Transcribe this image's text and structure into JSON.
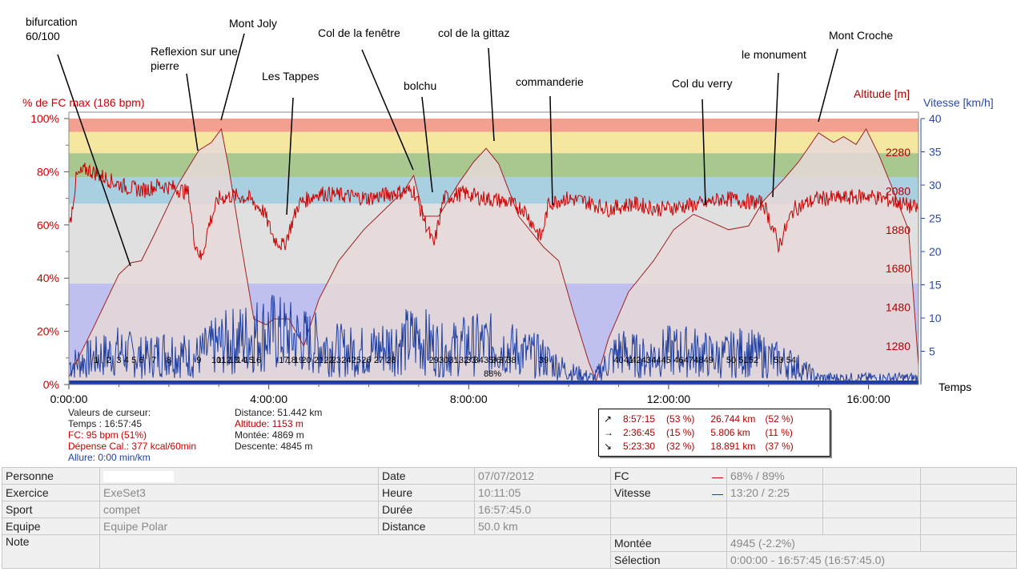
{
  "header": {
    "left_axis_title": "% de FC max (186 bpm)",
    "altitude_axis_title": "Altitude [m]",
    "speed_axis_title": "Vitesse [km/h]",
    "time_axis_title": "Temps"
  },
  "colors": {
    "hr_line": "#cc0000",
    "speed_line": "#1f3fa0",
    "altitude_fill": "#e6d8d8",
    "zone_100": "#f4a090",
    "zone_90": "#f5e6a0",
    "zone_80": "#a8c890",
    "zone_70": "#a8d0e0",
    "zone_60": "#e0e0e0",
    "zone_40": "#c0c0f0"
  },
  "chart_data": {
    "type": "line",
    "x_unit": "h:mm:ss",
    "x_ticks": [
      "0:00:00",
      "4:00:00",
      "8:00:00",
      "12:00:00",
      "16:00:00"
    ],
    "x_range_hours": [
      0,
      17.0
    ],
    "hr_ticks": [
      "0%",
      "20%",
      "40%",
      "60%",
      "80%",
      "100%"
    ],
    "altitude_ticks": [
      "1280",
      "1480",
      "1680",
      "1880",
      "2080",
      "2280"
    ],
    "speed_ticks": [
      "5",
      "10",
      "15",
      "20",
      "25",
      "30",
      "35",
      "40"
    ],
    "hr_zones_pct": [
      {
        "from": 38,
        "to": 68,
        "color_key": "zone_60"
      },
      {
        "from": 68,
        "to": 78,
        "color_key": "zone_70"
      },
      {
        "from": 78,
        "to": 87,
        "color_key": "zone_80"
      },
      {
        "from": 87,
        "to": 95,
        "color_key": "zone_90"
      },
      {
        "from": 95,
        "to": 100,
        "color_key": "zone_100"
      }
    ],
    "low_zone_pct": [
      0,
      38
    ],
    "series": [
      {
        "name": "Altitude",
        "unit": "m",
        "x": [
          0,
          0.5,
          1.0,
          1.25,
          1.45,
          1.7,
          2.2,
          2.6,
          2.85,
          3.05,
          3.2,
          3.45,
          3.7,
          3.95,
          4.1,
          4.4,
          4.7,
          5.0,
          5.4,
          5.9,
          6.3,
          6.7,
          6.9,
          7.1,
          7.4,
          7.8,
          8.1,
          8.35,
          8.6,
          9.0,
          9.5,
          9.8,
          10.1,
          10.4,
          10.55,
          10.8,
          11.2,
          11.7,
          12.1,
          12.5,
          12.85,
          13.2,
          13.6,
          13.9,
          14.3,
          14.6,
          15.0,
          15.3,
          15.5,
          15.75,
          15.95,
          16.2,
          16.5,
          16.8,
          17.0
        ],
        "y": [
          1120,
          1380,
          1650,
          1710,
          1720,
          1850,
          2120,
          2290,
          2330,
          2400,
          2200,
          1800,
          1420,
          1390,
          1420,
          1420,
          1280,
          1520,
          1720,
          1880,
          1980,
          2080,
          2160,
          1950,
          1950,
          2120,
          2230,
          2300,
          2220,
          1950,
          1790,
          1720,
          1450,
          1200,
          1100,
          1320,
          1560,
          1720,
          1880,
          1960,
          1920,
          1880,
          1900,
          2030,
          2140,
          2230,
          2380,
          2330,
          2360,
          2320,
          2400,
          2270,
          2080,
          1880,
          1180
        ]
      },
      {
        "name": "FC",
        "unit": "%",
        "x": [
          0,
          0.15,
          0.35,
          0.6,
          0.9,
          1.2,
          1.5,
          1.8,
          2.1,
          2.4,
          2.5,
          2.65,
          2.8,
          3.0,
          3.3,
          3.6,
          3.9,
          4.1,
          4.3,
          4.6,
          5.0,
          5.5,
          6.0,
          6.5,
          6.9,
          7.15,
          7.3,
          7.5,
          7.9,
          8.3,
          8.7,
          9.1,
          9.45,
          9.6,
          9.9,
          10.3,
          10.8,
          11.3,
          11.8,
          12.3,
          12.7,
          13.1,
          13.5,
          13.9,
          14.1,
          14.2,
          14.5,
          15.0,
          15.5,
          16.0,
          16.5,
          17.0
        ],
        "y": [
          57,
          78,
          81,
          79,
          76,
          74,
          73,
          75,
          74,
          72,
          55,
          47,
          60,
          70,
          71,
          70,
          65,
          55,
          52,
          68,
          72,
          71,
          70,
          72,
          73,
          60,
          52,
          70,
          72,
          70,
          69,
          66,
          55,
          68,
          70,
          69,
          66,
          68,
          66,
          67,
          68,
          70,
          69,
          68,
          58,
          52,
          66,
          70,
          70,
          71,
          69,
          66
        ]
      },
      {
        "name": "Vitesse",
        "unit": "km/h",
        "x": [
          0,
          0.5,
          1.0,
          1.5,
          2.0,
          2.5,
          3.0,
          3.5,
          4.0,
          4.5,
          5.0,
          5.5,
          6.0,
          6.5,
          7.0,
          7.5,
          8.0,
          8.5,
          9.0,
          9.5,
          10.0,
          10.5,
          11.0,
          11.5,
          12.0,
          12.5,
          13.0,
          13.5,
          14.0,
          14.5,
          15.0,
          15.5,
          16.0,
          16.5,
          17.0
        ],
        "y": [
          3,
          4,
          5,
          4,
          5,
          4,
          6,
          7,
          8,
          7,
          6,
          5,
          5,
          6,
          7,
          5,
          6,
          6,
          5,
          4,
          2,
          1,
          5,
          4,
          5,
          5,
          4,
          5,
          4,
          3,
          1,
          1,
          1,
          1,
          1
        ]
      }
    ],
    "lap_numbers": [
      "1",
      "2",
      "3",
      "4",
      "5",
      "6",
      "7",
      "8",
      "9",
      "10",
      "11",
      "12",
      "13",
      "14",
      "15",
      "16",
      "17",
      "18",
      "19",
      "20",
      "21",
      "22",
      "23",
      "24",
      "25",
      "26",
      "27",
      "28",
      "29",
      "30",
      "31",
      "32",
      "33",
      "34",
      "35",
      "36",
      "37",
      "38",
      "39",
      "40",
      "41",
      "42",
      "43",
      "44",
      "45",
      "46",
      "47",
      "48",
      "49",
      "50",
      "51",
      "52",
      "53",
      "54"
    ],
    "lap_label": "88%",
    "annotations": [
      {
        "label": "bifurcation",
        "label2": "60/100"
      },
      {
        "label": "Reflexion sur une",
        "label2": "pierre"
      },
      {
        "label": "Mont Joly",
        "label2": ""
      },
      {
        "label": "Les Tappes",
        "label2": ""
      },
      {
        "label": "Col de la fenêtre",
        "label2": ""
      },
      {
        "label": "bolchu",
        "label2": ""
      },
      {
        "label": "col de la gittaz",
        "label2": ""
      },
      {
        "label": "commanderie",
        "label2": ""
      },
      {
        "label": "Col du verry",
        "label2": ""
      },
      {
        "label": "le monument",
        "label2": ""
      },
      {
        "label": "Mont Croche",
        "label2": ""
      }
    ]
  },
  "cursor_info": {
    "title": "Valeurs de curseur:",
    "time": "Temps : 16:57:45",
    "hr": "FC: 95 bpm (51%)",
    "calories": "Dépense Cal.: 377 kcal/60min",
    "pace": "Allure: 0:00 min/km",
    "distance": "Distance: 51.442 km",
    "altitude": "Altitude: 1153 m",
    "ascent": "Montée: 4869 m",
    "descent": "Descente: 4845 m"
  },
  "stats_box": {
    "rows": [
      {
        "arrow": "↗",
        "time": "8:57:15",
        "time_pct": "(53 %)",
        "dist": "26.744 km",
        "dist_pct": "(52 %)"
      },
      {
        "arrow": "→",
        "time": "2:36:45",
        "time_pct": "(15 %)",
        "dist": "5.806 km",
        "dist_pct": "(11 %)"
      },
      {
        "arrow": "↘",
        "time": "5:23:30",
        "time_pct": "(32 %)",
        "dist": "18.891 km",
        "dist_pct": "(37 %)"
      }
    ]
  },
  "summary": {
    "personne_label": "Personne",
    "personne_value": "",
    "exercice_label": "Exercice",
    "exercice_value": "ExeSet3",
    "sport_label": "Sport",
    "sport_value": "compet",
    "equipe_label": "Equipe",
    "equipe_value": "Equipe Polar",
    "note_label": "Note",
    "date_label": "Date",
    "date_value": "07/07/2012",
    "heure_label": "Heure",
    "heure_value": "10:11:05",
    "duree_label": "Durée",
    "duree_value": "16:57:45.0",
    "distance_label": "Distance",
    "distance_value": "50.0 km",
    "fc_label": "FC",
    "fc_value": "68% / 89%",
    "vitesse_label": "Vitesse",
    "vitesse_value": "13:20 / 2:25",
    "montee_label": "Montée",
    "montee_value": "4945 (-2.2%)",
    "selection_label": "Sélection",
    "selection_value": "0:00:00 - 16:57:45 (16:57:45.0)"
  }
}
